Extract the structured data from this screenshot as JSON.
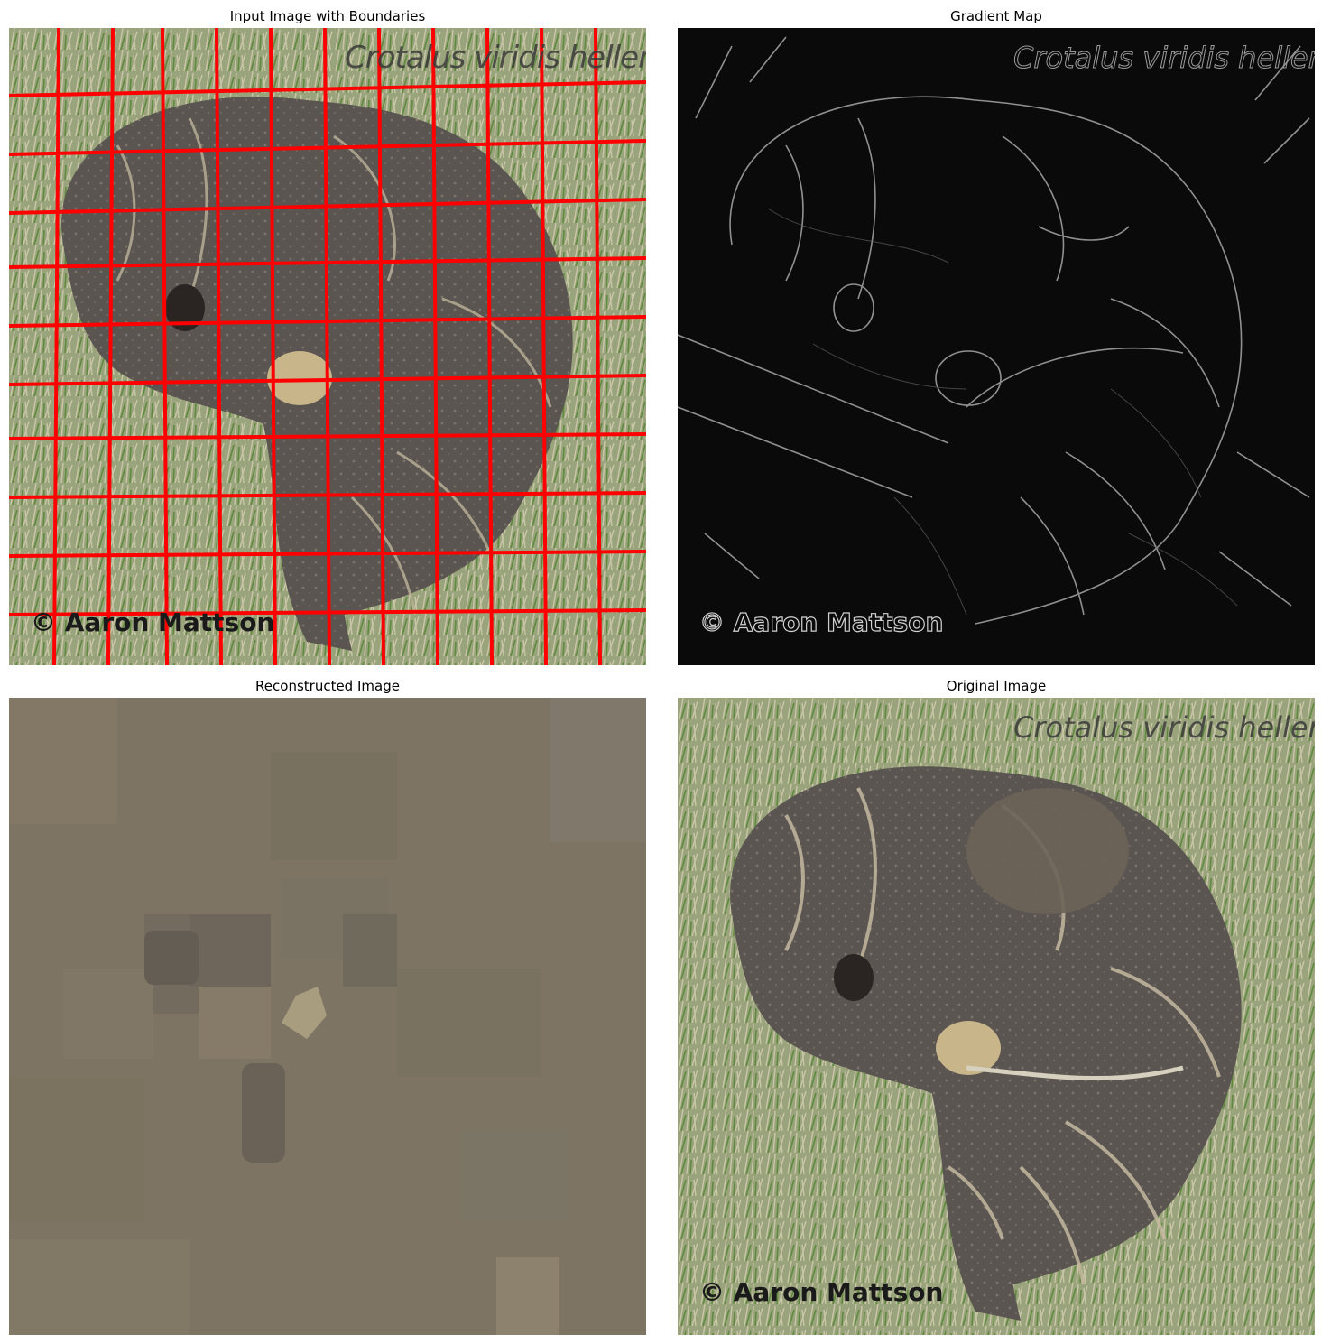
{
  "panels": [
    {
      "id": "input",
      "title": "Input Image with Boundaries"
    },
    {
      "id": "gradient",
      "title": "Gradient Map"
    },
    {
      "id": "reconstructed",
      "title": "Reconstructed Image"
    },
    {
      "id": "original",
      "title": "Original Image"
    }
  ],
  "watermark": {
    "species": "Crotalus viridis helleri",
    "credit": "© Aaron Mattson"
  },
  "colors": {
    "boundary": "#ff0000",
    "grass": "#8a9a6a",
    "snake": "#5a5550",
    "reconstructed_base": "#7d7463",
    "gradient_bg": "#0a0a0a"
  }
}
